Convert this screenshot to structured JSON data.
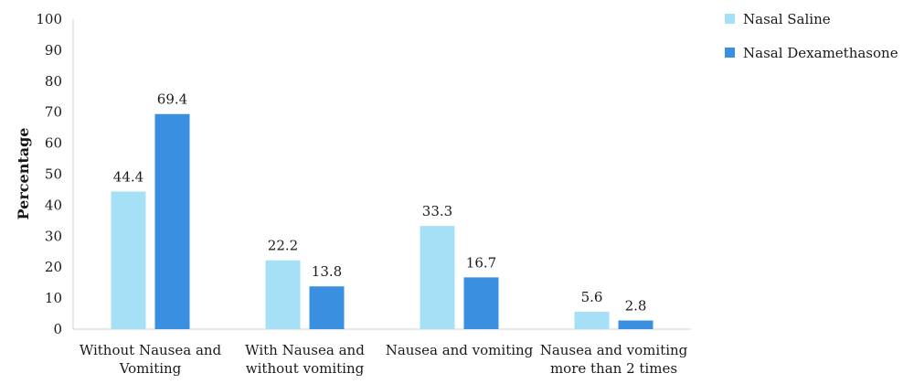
{
  "chart_data": {
    "type": "bar",
    "title": "",
    "xlabel": "",
    "ylabel": "Percentage",
    "ylim": [
      0,
      100
    ],
    "yticks": [
      0,
      10,
      20,
      30,
      40,
      50,
      60,
      70,
      80,
      90,
      100
    ],
    "grid": false,
    "legend_position": "right",
    "categories": [
      [
        "Without Nausea and",
        "Vomiting"
      ],
      [
        "With Nausea and",
        "without vomiting"
      ],
      [
        "Nausea and vomiting"
      ],
      [
        "Nausea and vomiting",
        "more than 2 times"
      ]
    ],
    "series": [
      {
        "name": "Nasal Saline",
        "color": "#a6e0f7",
        "values": [
          44.4,
          22.2,
          33.3,
          5.6
        ]
      },
      {
        "name": "Nasal Dexamethasone",
        "color": "#3a8fe0",
        "values": [
          69.4,
          13.8,
          16.7,
          2.8
        ]
      }
    ]
  }
}
